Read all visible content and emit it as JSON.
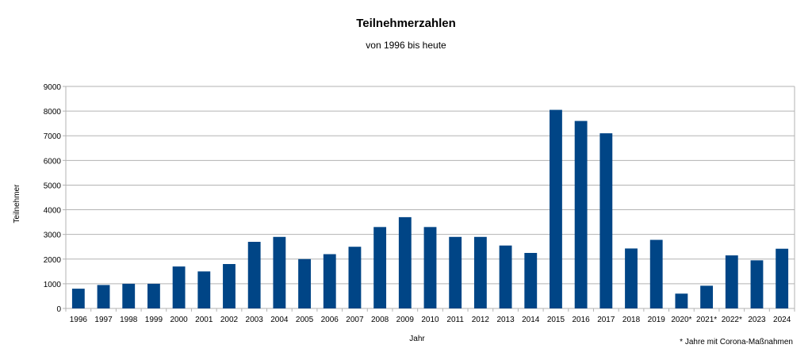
{
  "chart_data": {
    "type": "bar",
    "title": "Teilnehmerzahlen",
    "subtitle": "von 1996 bis heute",
    "xlabel": "Jahr",
    "ylabel": "Teilnehmer",
    "footnote": "* Jahre mit Corona-Maßnahmen",
    "ylim": [
      0,
      9000
    ],
    "yticks": [
      "0",
      "1000",
      "2000",
      "3000",
      "4000",
      "5000",
      "6000",
      "7000",
      "8000",
      "9000"
    ],
    "grid": true,
    "bar_color": "#004586",
    "categories": [
      "1996",
      "1997",
      "1998",
      "1999",
      "2000",
      "2001",
      "2002",
      "2003",
      "2004",
      "2005",
      "2006",
      "2007",
      "2008",
      "2009",
      "2010",
      "2011",
      "2012",
      "2013",
      "2014",
      "2015",
      "2016",
      "2017",
      "2018",
      "2019",
      "2020*",
      "2021*",
      "2022*",
      "2023",
      "2024"
    ],
    "values": [
      800,
      950,
      1000,
      1000,
      1700,
      1500,
      1800,
      2700,
      2900,
      2000,
      2200,
      2500,
      3300,
      3700,
      3300,
      2900,
      2900,
      2550,
      2250,
      8050,
      7600,
      7100,
      2430,
      2780,
      600,
      920,
      2150,
      1950,
      2420
    ]
  }
}
